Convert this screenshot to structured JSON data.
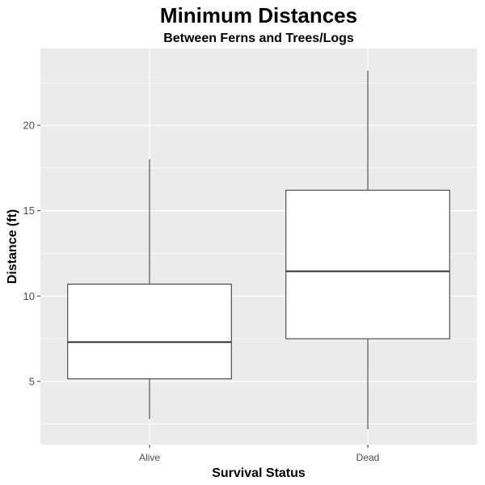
{
  "chart_data": {
    "type": "box",
    "title": "Minimum Distances",
    "subtitle": "Between Ferns and Trees/Logs",
    "xlabel": "Survival Status",
    "ylabel": "Distance (ft)",
    "categories": [
      "Alive",
      "Dead"
    ],
    "boxes": [
      {
        "category": "Alive",
        "min": 2.8,
        "q1": 5.15,
        "median": 7.3,
        "q3": 10.7,
        "max": 18.0
      },
      {
        "category": "Dead",
        "min": 2.2,
        "q1": 7.5,
        "median": 11.45,
        "q3": 16.2,
        "max": 23.2
      }
    ],
    "ylim": [
      1.3,
      24.5
    ],
    "yticks": [
      5,
      10,
      15,
      20
    ],
    "ytick_labels": [
      "5",
      "10",
      "15",
      "20"
    ],
    "grid": true,
    "colors": {
      "panel_background": "#ebebeb",
      "grid": "#ffffff",
      "box_fill": "#ffffff",
      "box_stroke": "#333333"
    }
  }
}
